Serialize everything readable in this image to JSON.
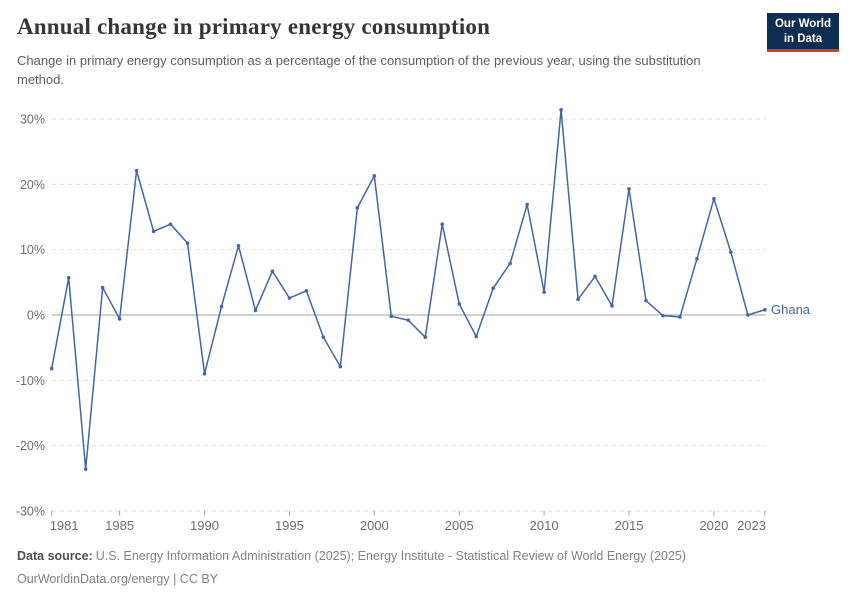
{
  "header": {
    "title": "Annual change in primary energy consumption",
    "subtitle": "Change in primary energy consumption as a percentage of the consumption of the previous year, using the substitution method."
  },
  "logo": {
    "line1": "Our World",
    "line2": "in Data",
    "bg_color": "#0d2d52",
    "bar_color": "#d23b2e"
  },
  "chart_data": {
    "type": "line",
    "title": "Annual change in primary energy consumption",
    "xlabel": "",
    "ylabel": "",
    "unit": "%",
    "ylim": [
      -30,
      30
    ],
    "yticks": [
      30,
      20,
      10,
      0,
      -10,
      -20,
      -30
    ],
    "xticks": [
      1981,
      1985,
      1990,
      1995,
      2000,
      2005,
      2010,
      2015,
      2020,
      2023
    ],
    "grid": "horizontal-dashed",
    "legend_position": "end-of-line-label",
    "colors": {
      "line": "#4266a6",
      "gridline": "#dcdcdc",
      "zero_line": "#a1a1a1",
      "tick_label": "#6e6e6e"
    },
    "series": [
      {
        "name": "Ghana",
        "color": "#4266a6",
        "years": [
          1981,
          1982,
          1983,
          1984,
          1985,
          1986,
          1987,
          1988,
          1989,
          1990,
          1991,
          1992,
          1993,
          1994,
          1995,
          1996,
          1997,
          1998,
          1999,
          2000,
          2001,
          2002,
          2003,
          2004,
          2005,
          2006,
          2007,
          2008,
          2009,
          2010,
          2011,
          2012,
          2013,
          2014,
          2015,
          2016,
          2017,
          2018,
          2019,
          2020,
          2021,
          2022,
          2023
        ],
        "values": [
          -8.2,
          5.7,
          -23.6,
          4.2,
          -0.6,
          22.1,
          12.8,
          13.9,
          11.0,
          -9.0,
          1.3,
          10.6,
          0.7,
          6.7,
          2.6,
          3.7,
          -3.4,
          -7.9,
          16.4,
          21.3,
          -0.2,
          -0.8,
          -3.4,
          13.9,
          1.7,
          -3.3,
          4.1,
          7.9,
          16.9,
          3.5,
          31.4,
          2.4,
          5.9,
          1.4,
          19.3,
          2.2,
          -0.1,
          -0.3,
          8.6,
          17.8,
          9.6,
          0.0,
          0.8
        ]
      }
    ]
  },
  "footer": {
    "sources_label": "Data source:",
    "sources": "U.S. Energy Information Administration (2025); Energy Institute - Statistical Review of World Energy (2025)",
    "note": "OurWorldinData.org/energy | CC BY"
  }
}
